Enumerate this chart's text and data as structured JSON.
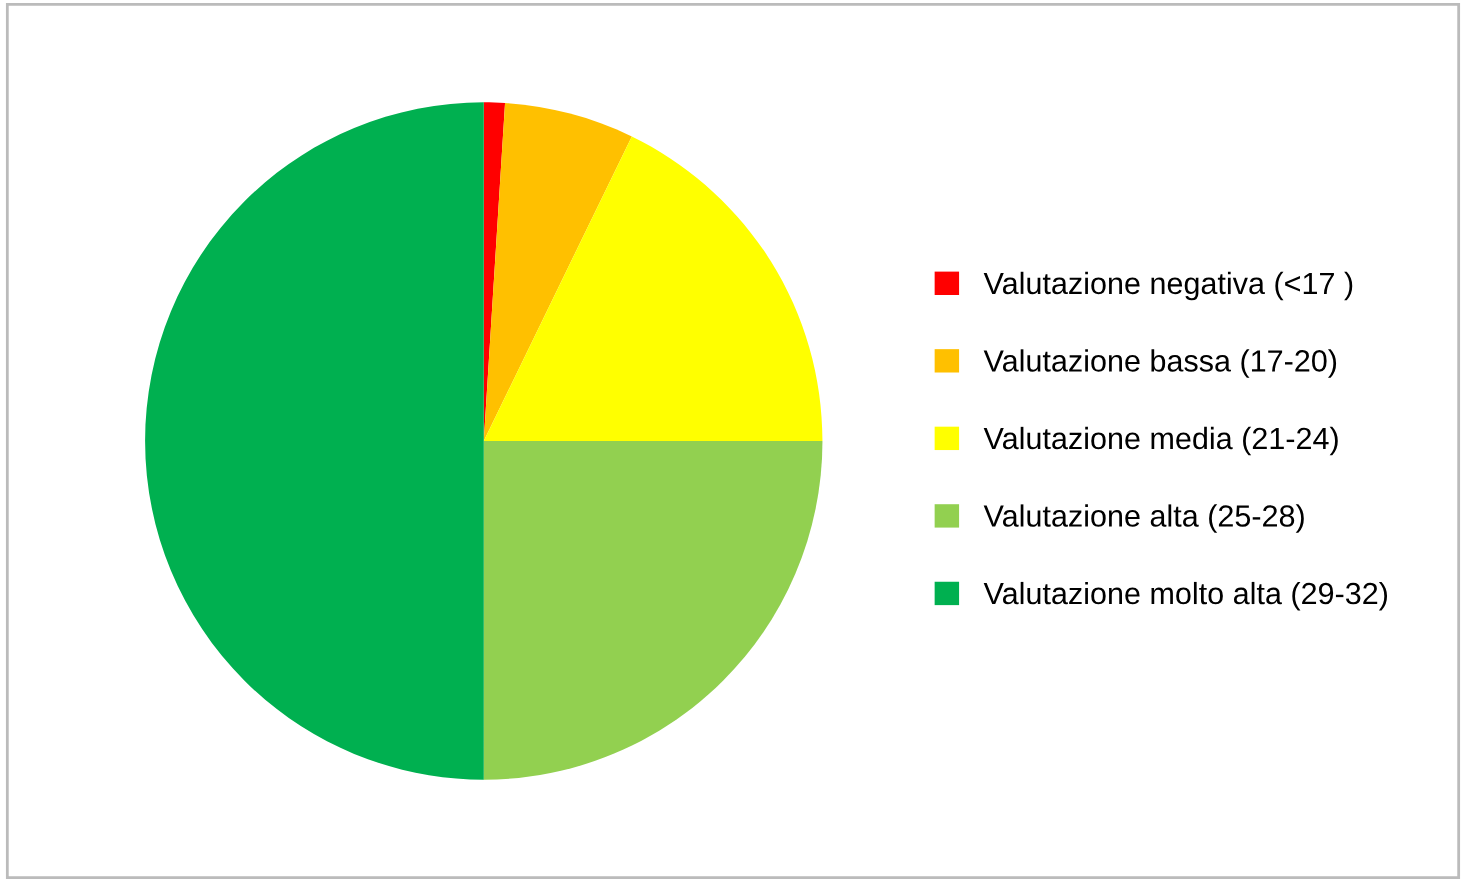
{
  "chart_data": {
    "type": "pie",
    "categories": [
      "Valutazione negativa (<17 )",
      "Valutazione bassa (17-20)",
      "Valutazione media (21-24)",
      "Valutazione alta (25-28)",
      "Valutazione molto alta (29-32)"
    ],
    "values": [
      1,
      6.2,
      17.8,
      25,
      50
    ],
    "colors": [
      "#ff0000",
      "#ffc000",
      "#ffff00",
      "#92d050",
      "#00b050"
    ],
    "legend": "right"
  }
}
